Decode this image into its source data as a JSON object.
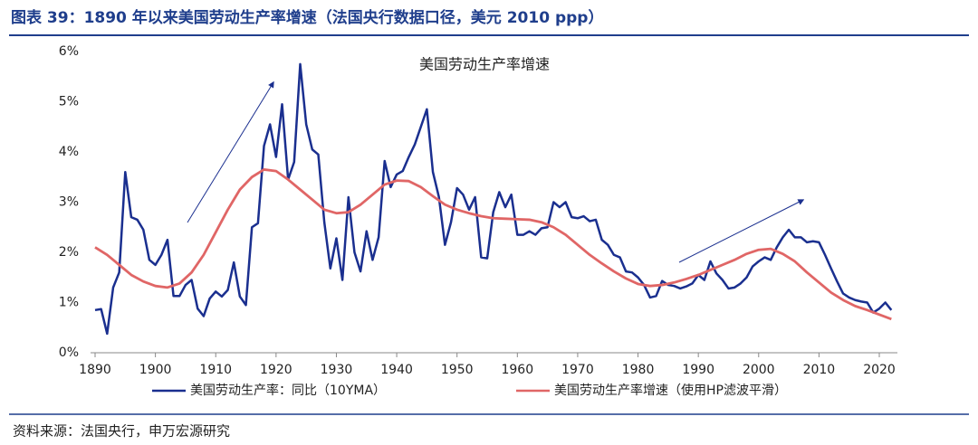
{
  "caption": "图表 39：1890 年以来美国劳动生产率增速（法国央行数据口径，美元 2010 ppp）",
  "source": "资料来源：法国央行，申万宏源研究",
  "chart_data": {
    "type": "line",
    "title": "美国劳动生产率增速",
    "xlim": [
      1890,
      2023
    ],
    "xticks": [
      1890,
      1900,
      1910,
      1920,
      1930,
      1940,
      1950,
      1960,
      1970,
      1980,
      1990,
      2000,
      2010,
      2020
    ],
    "ylim": [
      0,
      6
    ],
    "yticks": [
      {
        "value": 0,
        "label": "0%"
      },
      {
        "value": 1,
        "label": "1%"
      },
      {
        "value": 2,
        "label": "2%"
      },
      {
        "value": 3,
        "label": "3%"
      },
      {
        "value": 4,
        "label": "4%"
      },
      {
        "value": 5,
        "label": "5%"
      },
      {
        "value": 6,
        "label": "6%"
      }
    ],
    "grid": false,
    "legend": "bottom",
    "series": [
      {
        "name": "美国劳动生产率：同比（10YMA）",
        "color": "#1a2f8f",
        "x": [
          1890,
          1891,
          1892,
          1893,
          1894,
          1895,
          1896,
          1897,
          1898,
          1899,
          1900,
          1901,
          1902,
          1903,
          1904,
          1905,
          1906,
          1907,
          1908,
          1909,
          1910,
          1911,
          1912,
          1913,
          1914,
          1915,
          1916,
          1917,
          1918,
          1919,
          1920,
          1921,
          1922,
          1923,
          1924,
          1925,
          1926,
          1927,
          1928,
          1929,
          1930,
          1931,
          1932,
          1933,
          1934,
          1935,
          1936,
          1937,
          1938,
          1939,
          1940,
          1941,
          1942,
          1943,
          1944,
          1945,
          1946,
          1947,
          1948,
          1949,
          1950,
          1951,
          1952,
          1953,
          1954,
          1955,
          1956,
          1957,
          1958,
          1959,
          1960,
          1961,
          1962,
          1963,
          1964,
          1965,
          1966,
          1967,
          1968,
          1969,
          1970,
          1971,
          1972,
          1973,
          1974,
          1975,
          1976,
          1977,
          1978,
          1979,
          1980,
          1981,
          1982,
          1983,
          1984,
          1985,
          1986,
          1987,
          1988,
          1989,
          1990,
          1991,
          1992,
          1993,
          1994,
          1995,
          1996,
          1997,
          1998,
          1999,
          2000,
          2001,
          2002,
          2003,
          2004,
          2005,
          2006,
          2007,
          2008,
          2009,
          2010,
          2011,
          2012,
          2013,
          2014,
          2015,
          2016,
          2017,
          2018,
          2019,
          2020,
          2021,
          2022
        ],
        "values": [
          0.85,
          0.87,
          0.38,
          1.3,
          1.6,
          3.6,
          2.7,
          2.65,
          2.45,
          1.85,
          1.75,
          1.95,
          2.25,
          1.13,
          1.13,
          1.35,
          1.45,
          0.88,
          0.73,
          1.08,
          1.22,
          1.12,
          1.25,
          1.8,
          1.12,
          0.95,
          2.5,
          2.58,
          4.12,
          4.55,
          3.9,
          4.95,
          3.45,
          3.8,
          5.75,
          4.55,
          4.05,
          3.95,
          2.6,
          1.68,
          2.28,
          1.45,
          3.1,
          2.0,
          1.62,
          2.42,
          1.85,
          2.3,
          3.82,
          3.3,
          3.55,
          3.62,
          3.9,
          4.15,
          4.5,
          4.85,
          3.6,
          3.1,
          2.15,
          2.6,
          3.28,
          3.15,
          2.85,
          3.1,
          1.9,
          1.88,
          2.8,
          3.2,
          2.9,
          3.15,
          2.35,
          2.35,
          2.42,
          2.35,
          2.48,
          2.5,
          3.0,
          2.9,
          3.0,
          2.7,
          2.68,
          2.72,
          2.62,
          2.65,
          2.25,
          2.15,
          1.95,
          1.9,
          1.62,
          1.6,
          1.5,
          1.35,
          1.1,
          1.13,
          1.43,
          1.35,
          1.33,
          1.28,
          1.32,
          1.38,
          1.55,
          1.45,
          1.82,
          1.58,
          1.45,
          1.28,
          1.3,
          1.38,
          1.5,
          1.72,
          1.82,
          1.9,
          1.85,
          2.1,
          2.3,
          2.45,
          2.3,
          2.3,
          2.2,
          2.22,
          2.2,
          1.95,
          1.68,
          1.42,
          1.18,
          1.1,
          1.05,
          1.02,
          1.0,
          0.8,
          0.88,
          1.0,
          0.85
        ]
      },
      {
        "name": "美国劳动生产率增速（使用HP滤波平滑）",
        "color": "#e06666",
        "x": [
          1890,
          1892,
          1894,
          1896,
          1898,
          1900,
          1902,
          1904,
          1906,
          1908,
          1910,
          1912,
          1914,
          1916,
          1918,
          1920,
          1922,
          1924,
          1926,
          1928,
          1930,
          1932,
          1934,
          1936,
          1938,
          1940,
          1942,
          1944,
          1946,
          1948,
          1950,
          1952,
          1954,
          1956,
          1958,
          1960,
          1962,
          1964,
          1966,
          1968,
          1970,
          1972,
          1974,
          1976,
          1978,
          1980,
          1982,
          1984,
          1986,
          1988,
          1990,
          1992,
          1994,
          1996,
          1998,
          2000,
          2002,
          2004,
          2006,
          2008,
          2010,
          2012,
          2014,
          2016,
          2018,
          2020,
          2022
        ],
        "values": [
          2.1,
          1.95,
          1.75,
          1.55,
          1.42,
          1.33,
          1.3,
          1.38,
          1.6,
          1.95,
          2.4,
          2.85,
          3.25,
          3.5,
          3.65,
          3.62,
          3.45,
          3.25,
          3.05,
          2.85,
          2.78,
          2.8,
          2.95,
          3.15,
          3.35,
          3.43,
          3.42,
          3.3,
          3.12,
          2.95,
          2.85,
          2.78,
          2.72,
          2.68,
          2.67,
          2.66,
          2.65,
          2.6,
          2.5,
          2.35,
          2.15,
          1.95,
          1.78,
          1.62,
          1.48,
          1.37,
          1.33,
          1.35,
          1.4,
          1.47,
          1.55,
          1.65,
          1.75,
          1.85,
          1.97,
          2.05,
          2.07,
          1.97,
          1.82,
          1.6,
          1.4,
          1.2,
          1.05,
          0.93,
          0.85,
          0.76,
          0.67
        ]
      }
    ]
  }
}
